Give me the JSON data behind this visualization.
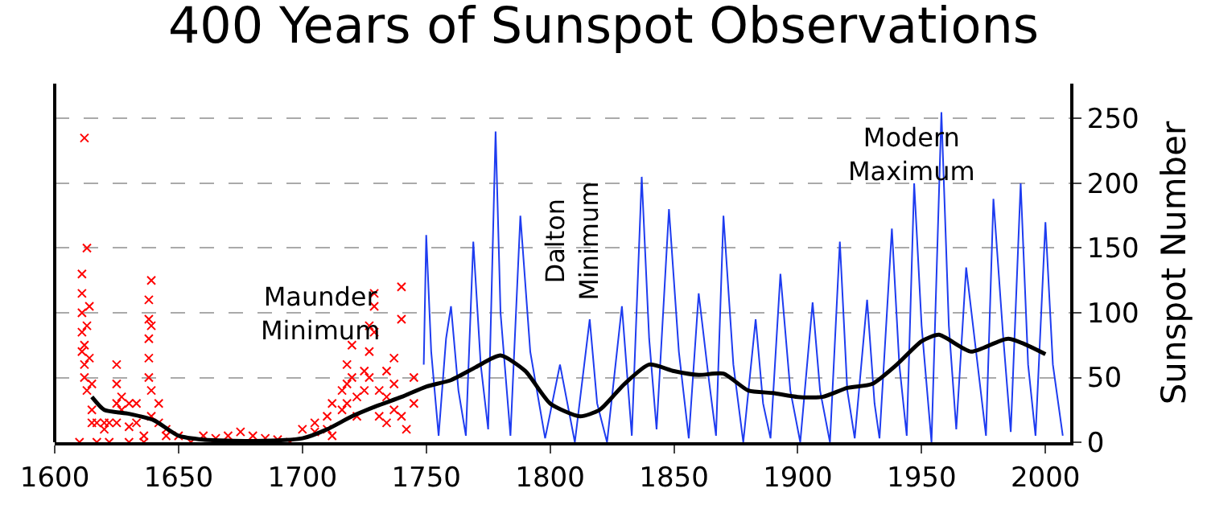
{
  "chart_data": {
    "type": "line",
    "title": "400 Years of Sunspot Observations",
    "ylabel": "Sunspot Number",
    "xlim": [
      1600,
      2010
    ],
    "xticks": [
      1600,
      1650,
      1700,
      1750,
      1800,
      1850,
      1900,
      1950,
      2000
    ],
    "ylim": [
      0,
      277
    ],
    "yticks": [
      0,
      50,
      100,
      150,
      200,
      250
    ],
    "grid": "y",
    "legend": false,
    "annotations": [
      "Maunder\nMinimum",
      "Dalton\nMinimum",
      "Modern\nMaximum"
    ],
    "series": [
      {
        "type": "scatter",
        "marker": "cross",
        "color": "#ff0000",
        "x": [
          1610,
          1611,
          1611,
          1611,
          1611,
          1611,
          1612,
          1612,
          1612,
          1612,
          1613,
          1613,
          1613,
          1614,
          1614,
          1615,
          1615,
          1615,
          1617,
          1617,
          1620,
          1620,
          1622,
          1622,
          1625,
          1625,
          1625,
          1625,
          1627,
          1627,
          1630,
          1630,
          1630,
          1633,
          1633,
          1636,
          1636,
          1638,
          1638,
          1638,
          1638,
          1638,
          1639,
          1639,
          1639,
          1639,
          1642,
          1642,
          1645,
          1645,
          1650,
          1655,
          1660,
          1665,
          1670,
          1675,
          1680,
          1685,
          1690,
          1695,
          1700,
          1705,
          1705,
          1710,
          1710,
          1712,
          1712,
          1716,
          1716,
          1718,
          1718,
          1718,
          1720,
          1720,
          1722,
          1722,
          1725,
          1725,
          1727,
          1727,
          1727,
          1729,
          1729,
          1729,
          1731,
          1731,
          1734,
          1734,
          1734,
          1737,
          1737,
          1737,
          1740,
          1740,
          1740,
          1742,
          1745,
          1745
        ],
        "values": [
          0,
          70,
          85,
          100,
          115,
          130,
          235,
          60,
          75,
          50,
          150,
          90,
          40,
          105,
          65,
          45,
          25,
          15,
          15,
          0,
          15,
          10,
          15,
          0,
          60,
          45,
          30,
          15,
          35,
          25,
          30,
          12,
          0,
          30,
          15,
          5,
          0,
          110,
          95,
          80,
          65,
          50,
          125,
          90,
          40,
          20,
          30,
          15,
          10,
          5,
          5,
          0,
          5,
          3,
          5,
          8,
          5,
          3,
          2,
          0,
          10,
          15,
          8,
          20,
          10,
          30,
          5,
          40,
          25,
          45,
          60,
          30,
          75,
          50,
          35,
          20,
          55,
          40,
          90,
          70,
          50,
          105,
          85,
          115,
          40,
          20,
          55,
          35,
          15,
          65,
          45,
          25,
          95,
          120,
          20,
          10,
          50,
          30
        ]
      },
      {
        "color": "#1e3cf0",
        "x": [
          1749,
          1750,
          1752,
          1755,
          1758,
          1760,
          1763,
          1766,
          1769,
          1772,
          1775,
          1778,
          1780,
          1784,
          1788,
          1792,
          1798,
          1804,
          1808,
          1810,
          1816,
          1819,
          1823,
          1829,
          1833,
          1837,
          1840,
          1843,
          1848,
          1852,
          1856,
          1860,
          1864,
          1867,
          1870,
          1874,
          1878,
          1883,
          1886,
          1889,
          1893,
          1897,
          1901,
          1906,
          1909,
          1913,
          1917,
          1920,
          1923,
          1928,
          1931,
          1933,
          1938,
          1941,
          1944,
          1947,
          1950,
          1954,
          1958,
          1961,
          1964,
          1968,
          1972,
          1976,
          1979,
          1983,
          1986,
          1990,
          1993,
          1996,
          2000,
          2003,
          2007
        ],
        "values": [
          60,
          160,
          70,
          5,
          80,
          105,
          40,
          5,
          155,
          60,
          10,
          240,
          100,
          5,
          175,
          70,
          3,
          60,
          20,
          0,
          95,
          30,
          0,
          105,
          5,
          205,
          80,
          10,
          180,
          70,
          3,
          115,
          50,
          5,
          175,
          60,
          0,
          95,
          30,
          3,
          130,
          40,
          0,
          108,
          40,
          0,
          155,
          40,
          3,
          110,
          30,
          3,
          165,
          60,
          5,
          200,
          90,
          0,
          255,
          90,
          10,
          135,
          70,
          5,
          188,
          80,
          8,
          200,
          60,
          5,
          170,
          60,
          5
        ]
      },
      {
        "color": "#000000",
        "x": [
          1615,
          1620,
          1630,
          1640,
          1650,
          1660,
          1680,
          1700,
          1710,
          1720,
          1730,
          1740,
          1750,
          1760,
          1770,
          1780,
          1790,
          1800,
          1812,
          1820,
          1830,
          1840,
          1850,
          1860,
          1870,
          1880,
          1890,
          1900,
          1910,
          1920,
          1930,
          1940,
          1950,
          1957,
          1970,
          1985,
          2000
        ],
        "values": [
          35,
          25,
          22,
          17,
          5,
          2,
          1,
          3,
          10,
          20,
          28,
          35,
          43,
          48,
          58,
          67,
          55,
          30,
          20,
          25,
          45,
          60,
          55,
          52,
          53,
          40,
          38,
          35,
          35,
          42,
          45,
          60,
          78,
          83,
          70,
          80,
          68
        ]
      }
    ]
  }
}
